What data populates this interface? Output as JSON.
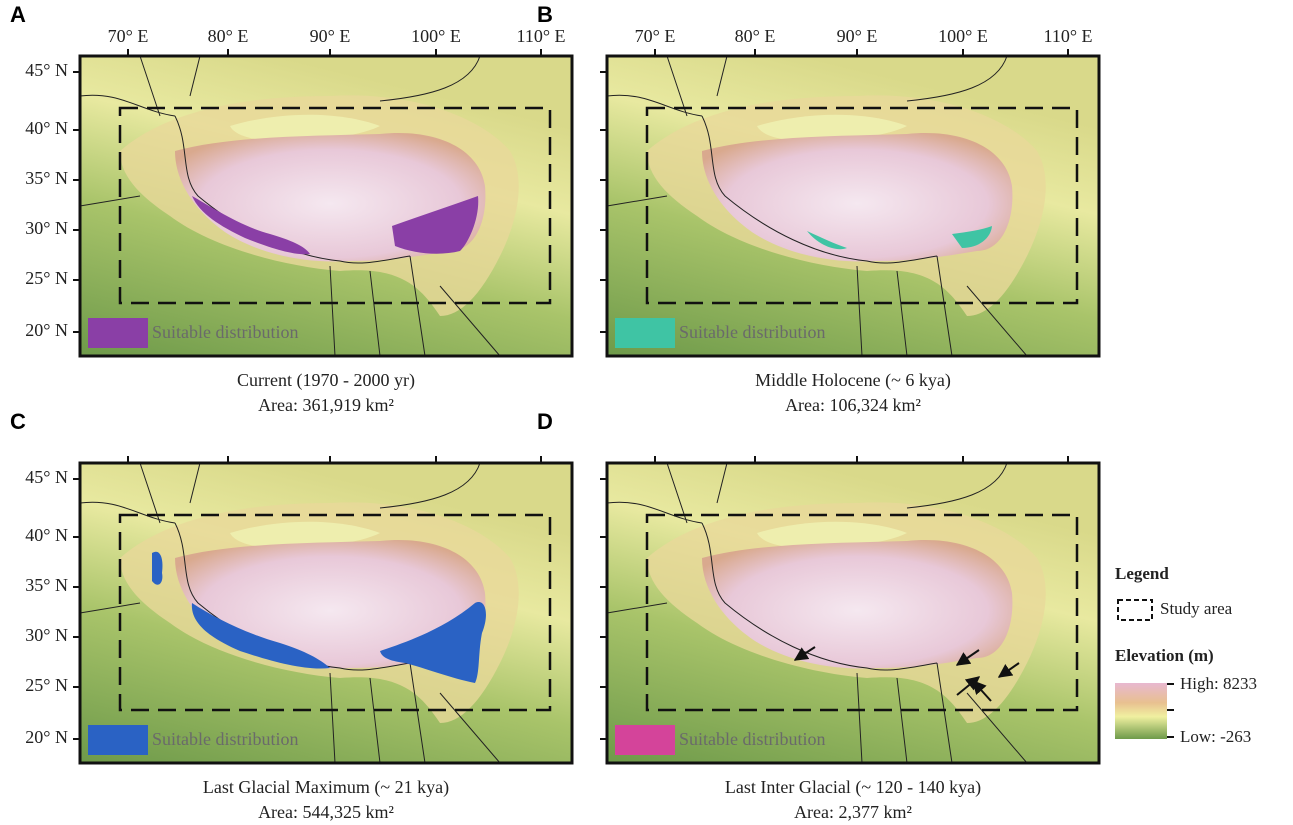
{
  "panels": [
    {
      "letter": "A",
      "caption": "Current (1970 - 2000 yr)",
      "area": "Area: 361,919 km²",
      "swatch_label": "Suitable distribution",
      "swatch_color": "#8a3fa6"
    },
    {
      "letter": "B",
      "caption": "Middle Holocene (~ 6 kya)",
      "area": "Area: 106,324 km²",
      "swatch_label": "Suitable distribution",
      "swatch_color": "#3fc4a4"
    },
    {
      "letter": "C",
      "caption": "Last Glacial Maximum (~ 21 kya)",
      "area": "Area: 544,325 km²",
      "swatch_label": "Suitable distribution",
      "swatch_color": "#2a62c4"
    },
    {
      "letter": "D",
      "caption": "Last Inter Glacial (~ 120 - 140 kya)",
      "area": "Area: 2,377 km²",
      "swatch_label": "Suitable distribution",
      "swatch_color": "#d4449a"
    }
  ],
  "longitude_labels": [
    "70° E",
    "80° E",
    "90° E",
    "100° E",
    "110° E"
  ],
  "latitude_labels": [
    "45° N",
    "40° N",
    "35° N",
    "30° N",
    "25° N",
    "20° N"
  ],
  "legend": {
    "title": "Legend",
    "study_area": "Study area",
    "elevation_title": "Elevation (m)",
    "high": "High: 8233",
    "low": "Low: -263"
  }
}
